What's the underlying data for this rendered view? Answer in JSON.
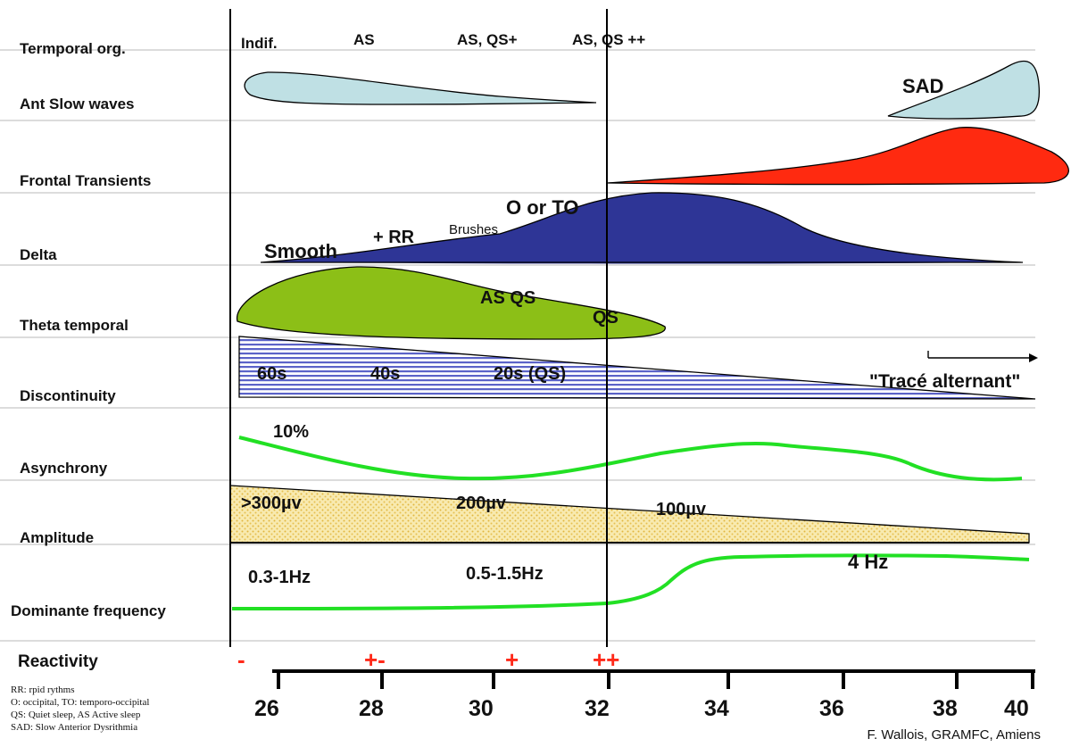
{
  "rows": [
    {
      "label": "Termporal org."
    },
    {
      "label": "Ant Slow waves"
    },
    {
      "label": "Frontal Transients"
    },
    {
      "label": "Delta"
    },
    {
      "label": "Theta temporal"
    },
    {
      "label": "Discontinuity"
    },
    {
      "label": "Asynchrony"
    },
    {
      "label": "Amplitude"
    },
    {
      "label": "Dominante frequency"
    },
    {
      "label": "Reactivity"
    }
  ],
  "temporal_org": [
    "Indif.",
    "AS",
    "AS, QS+",
    "AS, QS ++"
  ],
  "ant_slow_waves": {
    "late_label": "SAD"
  },
  "delta": {
    "labels": [
      "Smooth",
      "+ RR",
      "Brushes",
      "O or TO"
    ]
  },
  "theta": {
    "labels": [
      "AS QS",
      "QS"
    ]
  },
  "discontinuity": {
    "labels": [
      "60s",
      "40s",
      "20s (QS)"
    ],
    "arrow_label": "\"Tracé alternant\""
  },
  "asynchrony": {
    "label": "10%"
  },
  "amplitude": {
    "labels": [
      ">300µv",
      "200µv",
      "100µv"
    ]
  },
  "dominant_frequency": {
    "labels": [
      "0.3-1Hz",
      "0.5-1.5Hz",
      "4 Hz"
    ]
  },
  "reactivity": [
    "-",
    "+-",
    "+",
    "++"
  ],
  "axis": {
    "ticks": [
      "26",
      "28",
      "30",
      "32",
      "34",
      "36",
      "38",
      "40"
    ]
  },
  "legend": [
    "RR: rpid rythms",
    "O: occipital, TO: temporo-occipital",
    "QS: Quiet sleep, AS Active sleep",
    "SAD: Slow Anterior Dysrithmia"
  ],
  "credit": "F. Wallois, GRAMFC, Amiens",
  "colors": {
    "ant_slow": "#bfe0e4",
    "frontal": "#ff2a10",
    "delta": "#2e3596",
    "theta": "#8cbf17",
    "disc_stripe": "#5b63c8",
    "asynchrony": "#22e024",
    "amplitude": "#f3dc84",
    "dom_freq": "#22e024",
    "reactivity": "#ff2a1a"
  }
}
